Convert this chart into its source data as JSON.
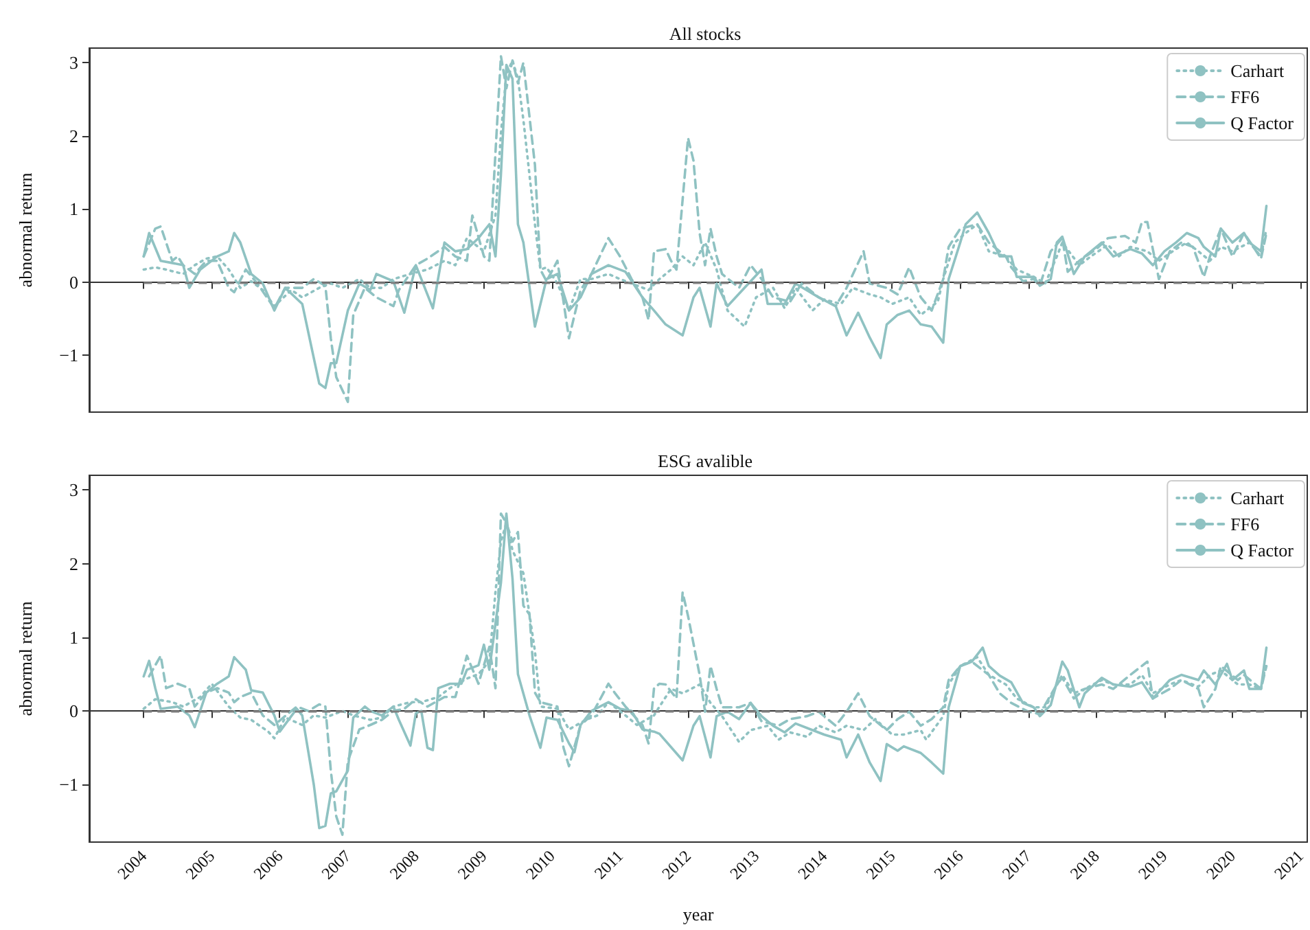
{
  "chart_data": [
    {
      "type": "line",
      "title": "All stocks",
      "ylabel": "abnormal return",
      "xlim": [
        2003.2,
        2021.1
      ],
      "xticks": [
        2004,
        2005,
        2006,
        2007,
        2008,
        2009,
        2010,
        2011,
        2012,
        2013,
        2014,
        2015,
        2016,
        2017,
        2018,
        2019,
        2020,
        2021
      ],
      "ylim": [
        -1.78,
        3.2
      ],
      "yticks": [
        {
          "value": -1,
          "label": "−1"
        },
        0,
        1,
        2,
        3
      ],
      "tick_labels": "y",
      "legend": "top right",
      "grid": false,
      "marker": "none",
      "ref_lines": [
        {
          "axis": "y",
          "value": 0,
          "color": "#7f7f7f",
          "line_style": "dashed"
        }
      ],
      "series": [
        {
          "name": "Carhart",
          "color": "#8fc2c2",
          "line_style": "dotted",
          "x": [
            2004.0,
            2004.17,
            2004.33,
            2004.58,
            2004.75,
            2004.92,
            2005.08,
            2005.25,
            2005.42,
            2005.58,
            2005.75,
            2005.92,
            2006.17,
            2006.33,
            2006.58,
            2006.75,
            2006.92,
            2007.17,
            2007.33,
            2007.5,
            2007.67,
            2007.92,
            2008.17,
            2008.42,
            2008.58,
            2008.75,
            2009.0,
            2009.17,
            2009.25,
            2009.33,
            2009.42,
            2009.5,
            2009.58,
            2009.75,
            2009.83,
            2009.92,
            2010.08,
            2010.25,
            2010.42,
            2010.58,
            2010.83,
            2011.0,
            2011.17,
            2011.42,
            2011.58,
            2011.75,
            2011.92,
            2012.08,
            2012.25,
            2012.42,
            2012.58,
            2012.83,
            2013.0,
            2013.25,
            2013.42,
            2013.58,
            2013.83,
            2014.0,
            2014.25,
            2014.42,
            2014.67,
            2014.83,
            2015.0,
            2015.25,
            2015.42,
            2015.67,
            2015.75,
            2015.92,
            2016.08,
            2016.25,
            2016.42,
            2016.67,
            2016.83,
            2017.08,
            2017.25,
            2017.42,
            2017.5,
            2017.75,
            2017.92,
            2018.17,
            2018.33,
            2018.5,
            2018.75,
            2018.92,
            2019.17,
            2019.33,
            2019.5,
            2019.67,
            2019.83,
            2020.0,
            2020.25,
            2020.42,
            2020.5
          ],
          "values": [
            0.17,
            0.2,
            0.17,
            0.11,
            0.23,
            0.32,
            0.35,
            0.17,
            -0.08,
            0.01,
            -0.11,
            -0.33,
            -0.11,
            -0.21,
            -0.08,
            -0.02,
            -0.08,
            0.04,
            -0.08,
            -0.08,
            0.04,
            0.11,
            0.17,
            0.29,
            0.23,
            0.6,
            0.42,
            0.91,
            2.03,
            2.84,
            3.03,
            2.78,
            2.22,
            0.79,
            0.17,
            0.2,
            -0.02,
            -0.39,
            0.04,
            0.04,
            0.11,
            0.04,
            -0.02,
            -0.11,
            0.04,
            0.17,
            0.35,
            0.23,
            0.54,
            0.17,
            -0.39,
            -0.61,
            -0.21,
            -0.08,
            -0.36,
            -0.08,
            -0.39,
            -0.24,
            -0.3,
            -0.08,
            -0.17,
            -0.21,
            -0.3,
            -0.21,
            -0.45,
            -0.27,
            0.04,
            0.54,
            0.67,
            0.79,
            0.42,
            0.35,
            0.17,
            0.07,
            -0.02,
            0.35,
            0.54,
            0.23,
            0.35,
            0.51,
            0.35,
            0.48,
            0.42,
            0.29,
            0.45,
            0.54,
            0.42,
            0.29,
            0.48,
            0.42,
            0.54,
            0.35,
            0.73
          ]
        },
        {
          "name": "FF6",
          "color": "#8fc2c2",
          "line_style": "dashed",
          "x": [
            2004.0,
            2004.17,
            2004.25,
            2004.42,
            2004.5,
            2004.58,
            2004.75,
            2004.92,
            2005.08,
            2005.25,
            2005.33,
            2005.5,
            2005.67,
            2005.92,
            2006.08,
            2006.33,
            2006.5,
            2006.67,
            2006.75,
            2006.83,
            2007.0,
            2007.08,
            2007.25,
            2007.42,
            2007.67,
            2007.75,
            2008.0,
            2008.17,
            2008.42,
            2008.58,
            2008.75,
            2008.83,
            2009.0,
            2009.08,
            2009.25,
            2009.33,
            2009.42,
            2009.5,
            2009.58,
            2009.75,
            2009.83,
            2009.92,
            2010.08,
            2010.25,
            2010.42,
            2010.58,
            2010.83,
            2011.0,
            2011.17,
            2011.33,
            2011.42,
            2011.5,
            2011.67,
            2011.75,
            2011.83,
            2012.0,
            2012.08,
            2012.17,
            2012.25,
            2012.33,
            2012.42,
            2012.5,
            2012.75,
            2012.92,
            2013.08,
            2013.25,
            2013.5,
            2013.67,
            2013.92,
            2014.17,
            2014.33,
            2014.58,
            2014.67,
            2014.92,
            2015.08,
            2015.25,
            2015.42,
            2015.58,
            2015.75,
            2015.83,
            2016.0,
            2016.25,
            2016.42,
            2016.67,
            2016.75,
            2016.92,
            2017.08,
            2017.17,
            2017.33,
            2017.5,
            2017.58,
            2017.75,
            2018.0,
            2018.17,
            2018.42,
            2018.58,
            2018.67,
            2018.75,
            2018.92,
            2019.08,
            2019.25,
            2019.42,
            2019.58,
            2019.67,
            2019.83,
            2020.0,
            2020.17,
            2020.33,
            2020.42,
            2020.5
          ],
          "values": [
            0.35,
            0.73,
            0.76,
            0.29,
            0.35,
            0.23,
            0.11,
            0.29,
            0.29,
            -0.08,
            -0.14,
            0.17,
            -0.02,
            -0.36,
            -0.08,
            -0.08,
            0.04,
            -0.05,
            -0.77,
            -1.3,
            -1.64,
            -0.45,
            -0.08,
            -0.21,
            -0.33,
            -0.11,
            0.23,
            0.32,
            0.48,
            0.35,
            0.29,
            0.91,
            0.35,
            0.29,
            3.09,
            2.65,
            3.03,
            2.72,
            3.0,
            1.6,
            0.17,
            0.01,
            0.29,
            -0.77,
            -0.11,
            0.11,
            0.6,
            0.35,
            0.04,
            -0.21,
            -0.52,
            0.42,
            0.45,
            0.29,
            0.17,
            1.97,
            1.66,
            0.67,
            0.23,
            0.73,
            0.35,
            0.11,
            -0.08,
            0.23,
            0.04,
            -0.21,
            -0.27,
            -0.02,
            -0.21,
            -0.33,
            -0.08,
            0.42,
            -0.02,
            -0.08,
            -0.17,
            0.2,
            -0.21,
            -0.39,
            0.04,
            0.48,
            0.73,
            0.79,
            0.54,
            0.35,
            0.2,
            0.01,
            0.04,
            -0.05,
            0.42,
            0.6,
            0.14,
            0.29,
            0.45,
            0.6,
            0.63,
            0.54,
            0.82,
            0.82,
            0.04,
            0.42,
            0.54,
            0.48,
            0.07,
            0.35,
            0.73,
            0.35,
            0.67,
            0.45,
            0.32,
            0.67
          ]
        },
        {
          "name": "Q Factor",
          "color": "#8fc2c2",
          "line_style": "solid",
          "x": [
            2004.0,
            2004.08,
            2004.25,
            2004.42,
            2004.58,
            2004.67,
            2004.83,
            2005.08,
            2005.25,
            2005.33,
            2005.42,
            2005.58,
            2005.75,
            2005.92,
            2006.08,
            2006.33,
            2006.58,
            2006.67,
            2006.75,
            2006.83,
            2007.0,
            2007.17,
            2007.33,
            2007.42,
            2007.67,
            2007.83,
            2008.0,
            2008.25,
            2008.42,
            2008.58,
            2008.75,
            2008.92,
            2009.08,
            2009.17,
            2009.25,
            2009.33,
            2009.42,
            2009.5,
            2009.58,
            2009.75,
            2009.92,
            2010.08,
            2010.25,
            2010.42,
            2010.58,
            2010.83,
            2011.08,
            2011.33,
            2011.5,
            2011.67,
            2011.92,
            2012.08,
            2012.17,
            2012.33,
            2012.42,
            2012.58,
            2012.83,
            2013.08,
            2013.17,
            2013.42,
            2013.58,
            2013.92,
            2014.17,
            2014.33,
            2014.5,
            2014.67,
            2014.83,
            2014.92,
            2015.08,
            2015.25,
            2015.42,
            2015.58,
            2015.75,
            2015.83,
            2016.0,
            2016.08,
            2016.25,
            2016.42,
            2016.58,
            2016.75,
            2016.83,
            2017.08,
            2017.17,
            2017.33,
            2017.42,
            2017.5,
            2017.67,
            2017.83,
            2018.08,
            2018.25,
            2018.5,
            2018.67,
            2018.83,
            2019.0,
            2019.17,
            2019.33,
            2019.5,
            2019.58,
            2019.75,
            2019.83,
            2020.0,
            2020.17,
            2020.25,
            2020.42,
            2020.5
          ],
          "values": [
            0.35,
            0.67,
            0.29,
            0.26,
            0.23,
            -0.08,
            0.17,
            0.35,
            0.42,
            0.67,
            0.54,
            0.11,
            -0.02,
            -0.39,
            -0.08,
            -0.3,
            -1.39,
            -1.45,
            -1.11,
            -1.11,
            -0.39,
            -0.02,
            -0.11,
            0.11,
            0.01,
            -0.42,
            0.23,
            -0.36,
            0.54,
            0.42,
            0.45,
            0.6,
            0.79,
            0.35,
            1.47,
            2.97,
            2.78,
            0.79,
            0.54,
            -0.61,
            0.04,
            0.11,
            -0.39,
            -0.21,
            0.11,
            0.23,
            0.14,
            -0.21,
            -0.39,
            -0.58,
            -0.73,
            -0.21,
            -0.08,
            -0.61,
            -0.02,
            -0.33,
            -0.08,
            0.17,
            -0.3,
            -0.3,
            -0.02,
            -0.21,
            -0.33,
            -0.73,
            -0.42,
            -0.76,
            -1.04,
            -0.58,
            -0.45,
            -0.39,
            -0.58,
            -0.61,
            -0.83,
            0.04,
            0.54,
            0.79,
            0.95,
            0.67,
            0.35,
            0.35,
            0.07,
            0.07,
            -0.05,
            0.04,
            0.54,
            0.62,
            0.11,
            0.35,
            0.54,
            0.35,
            0.45,
            0.39,
            0.23,
            0.42,
            0.54,
            0.67,
            0.6,
            0.48,
            0.35,
            0.73,
            0.54,
            0.67,
            0.54,
            0.42,
            1.04
          ]
        }
      ]
    },
    {
      "type": "line",
      "title": "ESG avalible",
      "xlabel": "year",
      "ylabel": "abnormal return",
      "xlim": [
        2003.2,
        2021.1
      ],
      "xticks": [
        2004,
        2005,
        2006,
        2007,
        2008,
        2009,
        2010,
        2011,
        2012,
        2013,
        2014,
        2015,
        2016,
        2017,
        2018,
        2019,
        2020,
        2021
      ],
      "ylim": [
        -1.78,
        3.2
      ],
      "yticks": [
        {
          "value": -1,
          "label": "−1"
        },
        0,
        1,
        2,
        3
      ],
      "legend": "top right",
      "grid": false,
      "marker": "none",
      "ref_lines": [
        {
          "axis": "y",
          "value": 0,
          "color": "#7f7f7f",
          "line_style": "dashed"
        }
      ],
      "series": [
        {
          "name": "Carhart",
          "color": "#8fc2c2",
          "line_style": "dotted",
          "x": [
            2004.0,
            2004.17,
            2004.42,
            2004.58,
            2004.83,
            2005.0,
            2005.25,
            2005.42,
            2005.58,
            2005.83,
            2005.92,
            2006.08,
            2006.33,
            2006.5,
            2006.67,
            2006.92,
            2007.08,
            2007.33,
            2007.5,
            2007.67,
            2007.92,
            2008.08,
            2008.33,
            2008.5,
            2008.75,
            2008.92,
            2009.08,
            2009.17,
            2009.25,
            2009.33,
            2009.42,
            2009.58,
            2009.75,
            2009.83,
            2010.08,
            2010.25,
            2010.5,
            2010.67,
            2010.83,
            2011.08,
            2011.25,
            2011.5,
            2011.58,
            2011.75,
            2011.92,
            2012.17,
            2012.33,
            2012.5,
            2012.75,
            2012.92,
            2013.17,
            2013.33,
            2013.5,
            2013.75,
            2013.92,
            2014.17,
            2014.33,
            2014.58,
            2014.75,
            2015.0,
            2015.17,
            2015.42,
            2015.5,
            2015.75,
            2015.83,
            2016.0,
            2016.25,
            2016.42,
            2016.67,
            2016.83,
            2017.08,
            2017.25,
            2017.5,
            2017.67,
            2017.83,
            2018.08,
            2018.25,
            2018.5,
            2018.67,
            2018.83,
            2019.08,
            2019.25,
            2019.5,
            2019.67,
            2019.83,
            2020.08,
            2020.25,
            2020.42,
            2020.5
          ],
          "values": [
            0.03,
            0.16,
            0.12,
            0.06,
            0.19,
            0.37,
            0.06,
            -0.09,
            -0.12,
            -0.28,
            -0.37,
            -0.09,
            -0.19,
            -0.06,
            -0.09,
            0,
            -0.06,
            -0.12,
            -0.09,
            0.06,
            0.12,
            0.12,
            0.19,
            0.31,
            0.44,
            0.5,
            0.68,
            1.62,
            2.3,
            2.55,
            2.18,
            1.87,
            0.81,
            0.06,
            0.03,
            -0.25,
            -0.12,
            -0.06,
            0.12,
            -0.06,
            -0.19,
            -0.06,
            0.06,
            0.3,
            0.24,
            0.36,
            0.11,
            -0.07,
            -0.42,
            -0.26,
            -0.2,
            -0.39,
            -0.29,
            -0.35,
            -0.2,
            -0.29,
            -0.2,
            -0.26,
            -0.11,
            -0.32,
            -0.32,
            -0.26,
            -0.39,
            -0.07,
            0.36,
            0.61,
            0.73,
            0.49,
            0.36,
            0.17,
            0.05,
            0.05,
            0.49,
            0.24,
            0.3,
            0.42,
            0.36,
            0.36,
            0.49,
            0.24,
            0.36,
            0.42,
            0.33,
            0.49,
            0.55,
            0.36,
            0.36,
            0.3,
            0.67
          ]
        },
        {
          "name": "FF6",
          "color": "#8fc2c2",
          "line_style": "dashed",
          "x": [
            2004.08,
            2004.17,
            2004.25,
            2004.33,
            2004.5,
            2004.67,
            2004.75,
            2004.92,
            2005.08,
            2005.25,
            2005.33,
            2005.42,
            2005.58,
            2005.75,
            2005.92,
            2006.25,
            2006.42,
            2006.58,
            2006.67,
            2006.75,
            2006.83,
            2006.92,
            2007.0,
            2007.17,
            2007.33,
            2007.5,
            2007.67,
            2007.83,
            2008.0,
            2008.17,
            2008.42,
            2008.58,
            2008.75,
            2008.92,
            2009.08,
            2009.17,
            2009.25,
            2009.33,
            2009.42,
            2009.5,
            2009.58,
            2009.67,
            2009.75,
            2009.83,
            2010.08,
            2010.17,
            2010.25,
            2010.42,
            2010.58,
            2010.83,
            2010.92,
            2011.08,
            2011.33,
            2011.42,
            2011.5,
            2011.58,
            2011.67,
            2011.83,
            2011.92,
            2012.0,
            2012.17,
            2012.25,
            2012.33,
            2012.42,
            2012.5,
            2012.75,
            2012.92,
            2013.08,
            2013.33,
            2013.5,
            2013.75,
            2013.92,
            2014.17,
            2014.33,
            2014.5,
            2014.67,
            2014.92,
            2015.08,
            2015.25,
            2015.42,
            2015.58,
            2015.75,
            2015.83,
            2016.0,
            2016.17,
            2016.42,
            2016.58,
            2016.75,
            2017.0,
            2017.17,
            2017.42,
            2017.5,
            2017.67,
            2017.83,
            2018.08,
            2018.25,
            2018.5,
            2018.75,
            2018.83,
            2019.08,
            2019.25,
            2019.5,
            2019.58,
            2019.75,
            2019.83,
            2020.08,
            2020.17,
            2020.42,
            2020.5
          ],
          "values": [
            0.47,
            0.62,
            0.75,
            0.31,
            0.37,
            0.31,
            0.06,
            0.25,
            0.31,
            0.25,
            0.12,
            0.19,
            0.25,
            -0.06,
            -0.19,
            0.06,
            0,
            0.09,
            0.06,
            -0.81,
            -1.43,
            -1.68,
            -0.68,
            -0.25,
            -0.19,
            -0.12,
            0,
            0.03,
            0.16,
            0.06,
            0.19,
            0.19,
            0.75,
            0.37,
            0.87,
            0.31,
            2.68,
            2.55,
            2.3,
            2.43,
            1.43,
            1.31,
            0.25,
            0.12,
            0.06,
            -0.5,
            -0.75,
            -0.19,
            -0.06,
            0.37,
            0.25,
            0.06,
            -0.19,
            -0.44,
            0.31,
            0.37,
            0.36,
            0.17,
            1.61,
            1.29,
            0.49,
            -0.01,
            0.61,
            0.3,
            0.05,
            0.05,
            0.11,
            -0.14,
            -0.2,
            -0.11,
            -0.07,
            -0.01,
            -0.2,
            -0.01,
            0.24,
            -0.07,
            -0.26,
            -0.11,
            -0.01,
            -0.2,
            -0.11,
            0.05,
            0.42,
            0.61,
            0.67,
            0.49,
            0.24,
            0.11,
            -0.01,
            -0.04,
            0.36,
            0.45,
            0.17,
            0.3,
            0.36,
            0.3,
            0.49,
            0.67,
            0.17,
            0.3,
            0.42,
            0.3,
            0.05,
            0.3,
            0.61,
            0.42,
            0.49,
            0.3,
            0.61
          ]
        },
        {
          "name": "Q Factor",
          "color": "#8fc2c2",
          "line_style": "solid",
          "x": [
            2004.0,
            2004.08,
            2004.17,
            2004.25,
            2004.5,
            2004.67,
            2004.75,
            2004.92,
            2005.08,
            2005.25,
            2005.33,
            2005.5,
            2005.58,
            2005.75,
            2005.92,
            2006.0,
            2006.25,
            2006.33,
            2006.5,
            2006.58,
            2006.67,
            2006.75,
            2006.83,
            2007.0,
            2007.08,
            2007.25,
            2007.33,
            2007.5,
            2007.67,
            2007.75,
            2007.92,
            2008.0,
            2008.08,
            2008.17,
            2008.25,
            2008.33,
            2008.5,
            2008.67,
            2008.75,
            2008.92,
            2009.0,
            2009.08,
            2009.25,
            2009.33,
            2009.42,
            2009.5,
            2009.67,
            2009.83,
            2009.92,
            2010.08,
            2010.25,
            2010.33,
            2010.42,
            2010.58,
            2010.83,
            2011.0,
            2011.17,
            2011.33,
            2011.5,
            2011.58,
            2011.92,
            2012.08,
            2012.17,
            2012.33,
            2012.42,
            2012.58,
            2012.75,
            2012.92,
            2013.08,
            2013.25,
            2013.42,
            2013.58,
            2013.83,
            2014.0,
            2014.25,
            2014.33,
            2014.5,
            2014.67,
            2014.83,
            2014.92,
            2015.08,
            2015.17,
            2015.42,
            2015.58,
            2015.75,
            2015.83,
            2016.0,
            2016.17,
            2016.33,
            2016.42,
            2016.58,
            2016.75,
            2016.92,
            2017.08,
            2017.17,
            2017.33,
            2017.5,
            2017.58,
            2017.75,
            2017.83,
            2018.08,
            2018.25,
            2018.5,
            2018.67,
            2018.83,
            2019.08,
            2019.25,
            2019.5,
            2019.58,
            2019.75,
            2019.92,
            2020.0,
            2020.17,
            2020.25,
            2020.42,
            2020.5
          ],
          "values": [
            0.47,
            0.68,
            0.31,
            0.03,
            0.06,
            -0.06,
            -0.22,
            0.25,
            0.37,
            0.47,
            0.73,
            0.56,
            0.28,
            0.25,
            -0.06,
            -0.28,
            0.03,
            -0.06,
            -1.0,
            -1.59,
            -1.56,
            -1.12,
            -1.09,
            -0.81,
            -0.09,
            0.06,
            0,
            -0.06,
            0.06,
            -0.12,
            -0.47,
            -0.03,
            0,
            -0.5,
            -0.53,
            0.31,
            0.37,
            0.37,
            0.56,
            0.62,
            0.9,
            0.56,
            1.74,
            2.68,
            1.8,
            0.5,
            -0.06,
            -0.5,
            -0.09,
            -0.12,
            -0.44,
            -0.56,
            -0.19,
            0,
            0.12,
            0.03,
            0,
            -0.25,
            -0.28,
            -0.31,
            -0.67,
            -0.2,
            -0.07,
            -0.63,
            -0.07,
            -0.01,
            -0.11,
            0.11,
            -0.07,
            -0.2,
            -0.29,
            -0.17,
            -0.26,
            -0.32,
            -0.39,
            -0.63,
            -0.32,
            -0.7,
            -0.95,
            -0.45,
            -0.54,
            -0.48,
            -0.57,
            -0.7,
            -0.85,
            0.05,
            0.61,
            0.67,
            0.86,
            0.61,
            0.48,
            0.39,
            0.11,
            0.05,
            -0.07,
            0.08,
            0.67,
            0.55,
            0.05,
            0.24,
            0.45,
            0.36,
            0.33,
            0.39,
            0.17,
            0.42,
            0.49,
            0.42,
            0.55,
            0.36,
            0.64,
            0.42,
            0.55,
            0.3,
            0.3,
            0.86
          ]
        }
      ]
    }
  ]
}
